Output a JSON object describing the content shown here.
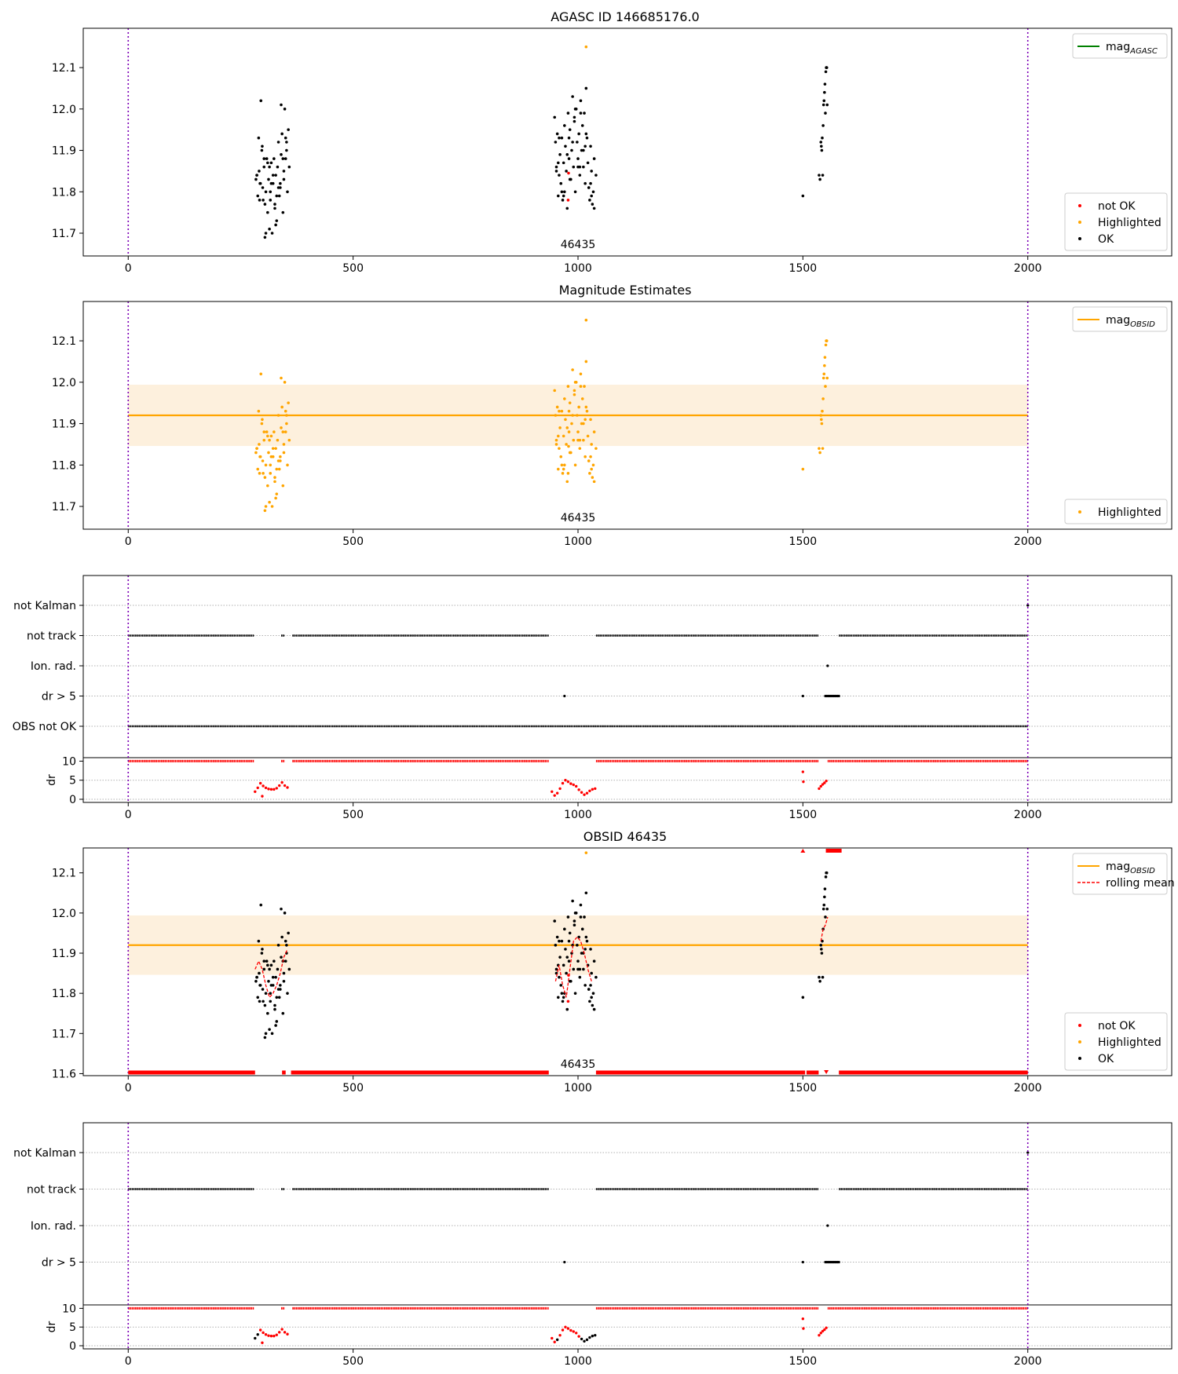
{
  "chart_data": [
    {
      "id": "panel-agasc",
      "type": "scatter",
      "title": "AGASC ID 146685176.0",
      "xlim": [
        -100,
        2320
      ],
      "ylim": [
        11.645,
        12.195
      ],
      "xticks": [
        0,
        500,
        1000,
        1500,
        2000
      ],
      "yticks": [
        11.7,
        11.8,
        11.9,
        12.0,
        12.1
      ],
      "vlines": [
        0,
        2000
      ],
      "obsid_label": {
        "x": 1000,
        "text": "46435"
      },
      "legend_lines": [
        {
          "label": "mag",
          "sub": "AGASC",
          "color": "#008000"
        }
      ],
      "legend_points": [
        {
          "label": "not OK",
          "color": "#ff0000"
        },
        {
          "label": "Highlighted",
          "color": "#ffa500"
        },
        {
          "label": "OK",
          "color": "#000000"
        }
      ],
      "series": [
        {
          "name": "OK",
          "color": "#000000",
          "x": [
            284,
            286,
            288,
            290,
            291,
            293,
            295,
            297,
            299,
            300,
            302,
            304,
            306,
            308,
            310,
            312,
            314,
            316,
            318,
            320,
            322,
            324,
            326,
            328,
            330,
            332,
            334,
            336,
            338,
            340,
            342,
            344,
            346,
            348,
            350,
            352,
            354,
            356,
            358,
            286,
            292,
            298,
            304,
            310,
            316,
            322,
            328,
            334,
            340,
            346,
            352,
            294,
            302,
            314,
            326,
            338,
            350,
            306,
            318,
            330,
            344,
            948,
            950,
            952,
            954,
            956,
            958,
            960,
            962,
            964,
            966,
            968,
            970,
            972,
            974,
            976,
            978,
            980,
            982,
            984,
            986,
            988,
            990,
            992,
            994,
            996,
            998,
            1000,
            1002,
            1004,
            1006,
            1008,
            1010,
            1012,
            1014,
            1016,
            1018,
            1020,
            1022,
            1024,
            1026,
            1028,
            1030,
            1032,
            1034,
            1036,
            952,
            958,
            964,
            970,
            976,
            982,
            988,
            994,
            1000,
            1006,
            1012,
            1018,
            1024,
            1030,
            1036,
            956,
            968,
            980,
            992,
            1004,
            1016,
            1028,
            1040,
            1500,
            1536,
            1538,
            1540,
            1541,
            1542,
            1543,
            1544,
            1545,
            1546,
            1547,
            1548,
            1549,
            1550,
            1551,
            1552,
            1553,
            1554
          ],
          "y": [
            11.83,
            11.84,
            11.79,
            11.93,
            11.85,
            11.82,
            12.02,
            11.9,
            11.81,
            11.78,
            11.86,
            11.69,
            11.8,
            11.88,
            11.75,
            11.83,
            11.71,
            11.78,
            11.87,
            11.7,
            11.82,
            11.88,
            11.76,
            11.84,
            11.73,
            11.86,
            11.92,
            11.79,
            11.81,
            12.01,
            11.94,
            11.88,
            11.85,
            12.0,
            11.93,
            11.9,
            11.8,
            11.95,
            11.86,
            11.84,
            11.78,
            11.91,
            11.77,
            11.87,
            11.8,
            11.84,
            11.72,
            11.81,
            11.89,
            11.83,
            11.92,
            11.82,
            11.88,
            11.86,
            11.77,
            11.82,
            11.88,
            11.7,
            11.82,
            11.79,
            11.75,
            11.98,
            11.92,
            11.86,
            11.94,
            11.79,
            11.84,
            11.89,
            11.82,
            11.93,
            11.78,
            11.87,
            11.8,
            11.91,
            11.85,
            11.76,
            11.99,
            11.88,
            11.95,
            11.83,
            11.9,
            12.03,
            11.86,
            11.97,
            11.8,
            12.0,
            11.92,
            11.88,
            11.94,
            11.84,
            12.02,
            11.9,
            11.96,
            11.86,
            11.99,
            11.82,
            12.05,
            11.93,
            11.87,
            11.81,
            11.78,
            11.91,
            11.85,
            11.77,
            11.8,
            11.88,
            11.85,
            11.93,
            11.8,
            11.96,
            11.89,
            11.83,
            11.92,
            12.0,
            11.86,
            11.99,
            11.9,
            11.94,
            11.81,
            11.79,
            11.76,
            11.87,
            11.79,
            11.93,
            11.98,
            11.86,
            11.91,
            11.82,
            11.84,
            11.79,
            11.84,
            11.83,
            11.92,
            11.91,
            11.9,
            11.93,
            11.84,
            11.96,
            12.01,
            12.02,
            12.04,
            12.06,
            11.99,
            12.09,
            12.1,
            12.1,
            12.01
          ]
        },
        {
          "name": "not OK",
          "color": "#ff0000",
          "x": [
            978,
            979
          ],
          "y": [
            11.78,
            11.845
          ]
        },
        {
          "name": "Highlighted",
          "color": "#ffa500",
          "x": [
            1018
          ],
          "y": [
            12.15
          ]
        }
      ]
    },
    {
      "id": "panel-estimates",
      "type": "scatter",
      "title": "Magnitude Estimates",
      "xlim": [
        -100,
        2320
      ],
      "ylim": [
        11.645,
        12.195
      ],
      "xticks": [
        0,
        500,
        1000,
        1500,
        2000
      ],
      "yticks": [
        11.7,
        11.8,
        11.9,
        12.0,
        12.1
      ],
      "vlines": [
        0,
        2000
      ],
      "obsid_label": {
        "x": 1000,
        "text": "46435"
      },
      "mean_line": {
        "y": 11.92,
        "xmin": 0,
        "xmax": 2000,
        "color": "#ffa500"
      },
      "band": {
        "y0": 11.846,
        "y1": 11.994,
        "color": "#fdf0dd"
      },
      "legend_lines": [
        {
          "label": "mag",
          "sub": "OBSID",
          "color": "#ffa500"
        }
      ],
      "legend_points": [
        {
          "label": "Highlighted",
          "color": "#ffa500"
        }
      ],
      "series": [
        {
          "name": "Highlighted",
          "color": "#ffa500",
          "ref": 0
        }
      ]
    },
    {
      "id": "panel-flags-1",
      "type": "scatter",
      "xlim": [
        -100,
        2320
      ],
      "flag_labels": [
        "not Kalman",
        "not track",
        "Ion. rad.",
        "dr > 5",
        "OBS not OK"
      ],
      "segments": [
        {
          "row": "not track",
          "ranges": [
            [
              0,
              280
            ],
            [
              340,
              348
            ],
            [
              365,
              935
            ],
            [
              1040,
              1535
            ],
            [
              1580,
              2000
            ]
          ]
        },
        {
          "row": "OBS not OK",
          "ranges": [
            [
              0,
              2000
            ]
          ]
        }
      ],
      "points": [
        {
          "row": "not Kalman",
          "x": [
            2000
          ]
        },
        {
          "row": "Ion. rad.",
          "x": [
            1555
          ]
        },
        {
          "row": "dr > 5",
          "x": [
            970,
            1500,
            1550,
            1553,
            1556,
            1559,
            1562,
            1565,
            1568,
            1571,
            1574,
            1577,
            1580
          ]
        }
      ],
      "dr": {
        "ylabel": "dr",
        "yticks": [
          0,
          5,
          10
        ],
        "ylim": [
          0,
          10.5
        ],
        "top_row_ranges": [
          [
            0,
            280
          ],
          [
            340,
            348
          ],
          [
            365,
            935
          ],
          [
            1040,
            1535
          ],
          [
            1555,
            2000
          ]
        ],
        "values": [
          [
            282,
            2.0
          ],
          [
            288,
            3.0
          ],
          [
            294,
            4.2
          ],
          [
            300,
            3.5
          ],
          [
            306,
            3.0
          ],
          [
            312,
            2.7
          ],
          [
            318,
            2.6
          ],
          [
            324,
            2.6
          ],
          [
            330,
            2.9
          ],
          [
            336,
            3.6
          ],
          [
            342,
            4.4
          ],
          [
            348,
            3.6
          ],
          [
            354,
            3.1
          ],
          [
            298,
            0.8
          ],
          [
            942,
            2.0
          ],
          [
            948,
            1.0
          ],
          [
            954,
            1.6
          ],
          [
            960,
            2.8
          ],
          [
            966,
            4.2
          ],
          [
            972,
            5.0
          ],
          [
            978,
            4.6
          ],
          [
            984,
            4.1
          ],
          [
            990,
            3.8
          ],
          [
            996,
            3.4
          ],
          [
            1002,
            2.5
          ],
          [
            1008,
            1.8
          ],
          [
            1014,
            1.2
          ],
          [
            1020,
            1.6
          ],
          [
            1026,
            2.2
          ],
          [
            1032,
            2.6
          ],
          [
            1038,
            2.8
          ],
          [
            1500,
            7.2
          ],
          [
            1501,
            4.6
          ],
          [
            1536,
            2.8
          ],
          [
            1540,
            3.4
          ],
          [
            1544,
            3.9
          ],
          [
            1548,
            4.3
          ],
          [
            1552,
            4.8
          ]
        ]
      }
    },
    {
      "id": "panel-obsid",
      "type": "scatter",
      "title": "OBSID 46435",
      "xlim": [
        -100,
        2320
      ],
      "ylim": [
        11.595,
        12.162
      ],
      "xticks": [
        0,
        500,
        1000,
        1500,
        2000
      ],
      "yticks": [
        11.6,
        11.7,
        11.8,
        11.9,
        12.0,
        12.1
      ],
      "vlines": [
        0,
        2000
      ],
      "obsid_label": {
        "x": 1000,
        "text": "46435"
      },
      "mean_line": {
        "y": 11.92,
        "xmin": 0,
        "xmax": 2000,
        "color": "#ffa500"
      },
      "band": {
        "y0": 11.846,
        "y1": 11.994,
        "color": "#fdf0dd"
      },
      "legend_lines": [
        {
          "label": "mag",
          "sub": "OBSID",
          "color": "#ffa500",
          "dash": false
        },
        {
          "label": "rolling mean",
          "sub": "",
          "color": "#ff0000",
          "dash": true
        }
      ],
      "legend_points": [
        {
          "label": "not OK",
          "color": "#ff0000"
        },
        {
          "label": "Highlighted",
          "color": "#ffa500"
        },
        {
          "label": "OK",
          "color": "#000000"
        }
      ],
      "rolling_mean": [
        [
          [
            282,
            11.86
          ],
          [
            290,
            11.88
          ],
          [
            298,
            11.86
          ],
          [
            306,
            11.82
          ],
          [
            314,
            11.79
          ],
          [
            322,
            11.8
          ],
          [
            330,
            11.82
          ],
          [
            338,
            11.85
          ],
          [
            346,
            11.89
          ],
          [
            354,
            11.91
          ]
        ],
        [
          [
            950,
            11.83
          ],
          [
            958,
            11.87
          ],
          [
            966,
            11.82
          ],
          [
            974,
            11.79
          ],
          [
            982,
            11.86
          ],
          [
            990,
            11.93
          ],
          [
            998,
            11.94
          ],
          [
            1006,
            11.93
          ],
          [
            1014,
            11.9
          ],
          [
            1022,
            11.86
          ],
          [
            1030,
            11.83
          ]
        ],
        [
          [
            1540,
            11.93
          ],
          [
            1545,
            11.96
          ],
          [
            1550,
            11.97
          ],
          [
            1555,
            11.99
          ]
        ]
      ],
      "clipped_bottom_ranges": [
        [
          0,
          282
        ],
        [
          342,
          350
        ],
        [
          362,
          935
        ],
        [
          1040,
          1505
        ],
        [
          1508,
          1535
        ],
        [
          1580,
          2000
        ]
      ],
      "clipped_top_ranges": [
        [
          1551,
          1586
        ]
      ],
      "clipped_top_points": [
        1500
      ],
      "series": [
        {
          "name": "OK",
          "color": "#000000",
          "ref": 0
        },
        {
          "name": "not OK",
          "color": "#ff0000",
          "ref": 0
        },
        {
          "name": "Highlighted",
          "color": "#ffa500",
          "ref": 0
        }
      ]
    },
    {
      "id": "panel-flags-2",
      "type": "scatter",
      "xlim": [
        -100,
        2320
      ],
      "flag_labels": [
        "not Kalman",
        "not track",
        "Ion. rad.",
        "dr > 5"
      ],
      "segments": [
        {
          "row": "not track",
          "ranges": [
            [
              0,
              280
            ],
            [
              340,
              348
            ],
            [
              365,
              935
            ],
            [
              1040,
              1535
            ],
            [
              1580,
              2000
            ]
          ]
        }
      ],
      "points": [
        {
          "row": "not Kalman",
          "x": [
            2000
          ]
        },
        {
          "row": "Ion. rad.",
          "x": [
            1555
          ]
        },
        {
          "row": "dr > 5",
          "x": [
            970,
            1500,
            1550,
            1553,
            1556,
            1559,
            1562,
            1565,
            1568,
            1571,
            1574,
            1577,
            1580
          ]
        }
      ],
      "dr": {
        "ylabel": "dr",
        "yticks": [
          0,
          5,
          10
        ],
        "ylim": [
          0,
          10.5
        ],
        "top_row_ranges": [
          [
            0,
            280
          ],
          [
            340,
            348
          ],
          [
            365,
            935
          ],
          [
            1040,
            1535
          ],
          [
            1555,
            2000
          ]
        ],
        "values": [
          [
            282,
            2.0
          ],
          [
            288,
            3.0
          ],
          [
            294,
            4.2
          ],
          [
            300,
            3.5
          ],
          [
            306,
            3.0
          ],
          [
            312,
            2.7
          ],
          [
            318,
            2.6
          ],
          [
            324,
            2.6
          ],
          [
            330,
            2.9
          ],
          [
            336,
            3.6
          ],
          [
            342,
            4.4
          ],
          [
            348,
            3.6
          ],
          [
            354,
            3.1
          ],
          [
            298,
            0.8
          ],
          [
            942,
            2.0
          ],
          [
            948,
            1.0
          ],
          [
            954,
            1.6
          ],
          [
            960,
            2.8
          ],
          [
            966,
            4.2
          ],
          [
            972,
            5.0
          ],
          [
            978,
            4.6
          ],
          [
            984,
            4.1
          ],
          [
            990,
            3.8
          ],
          [
            996,
            3.4
          ],
          [
            1002,
            2.5
          ],
          [
            1008,
            1.8
          ],
          [
            1014,
            1.2
          ],
          [
            1020,
            1.6
          ],
          [
            1026,
            2.2
          ],
          [
            1032,
            2.6
          ],
          [
            1038,
            2.8
          ],
          [
            1500,
            7.2
          ],
          [
            1501,
            4.6
          ],
          [
            1536,
            2.8
          ],
          [
            1540,
            3.4
          ],
          [
            1544,
            3.9
          ],
          [
            1548,
            4.3
          ],
          [
            1552,
            4.8
          ]
        ]
      }
    }
  ]
}
